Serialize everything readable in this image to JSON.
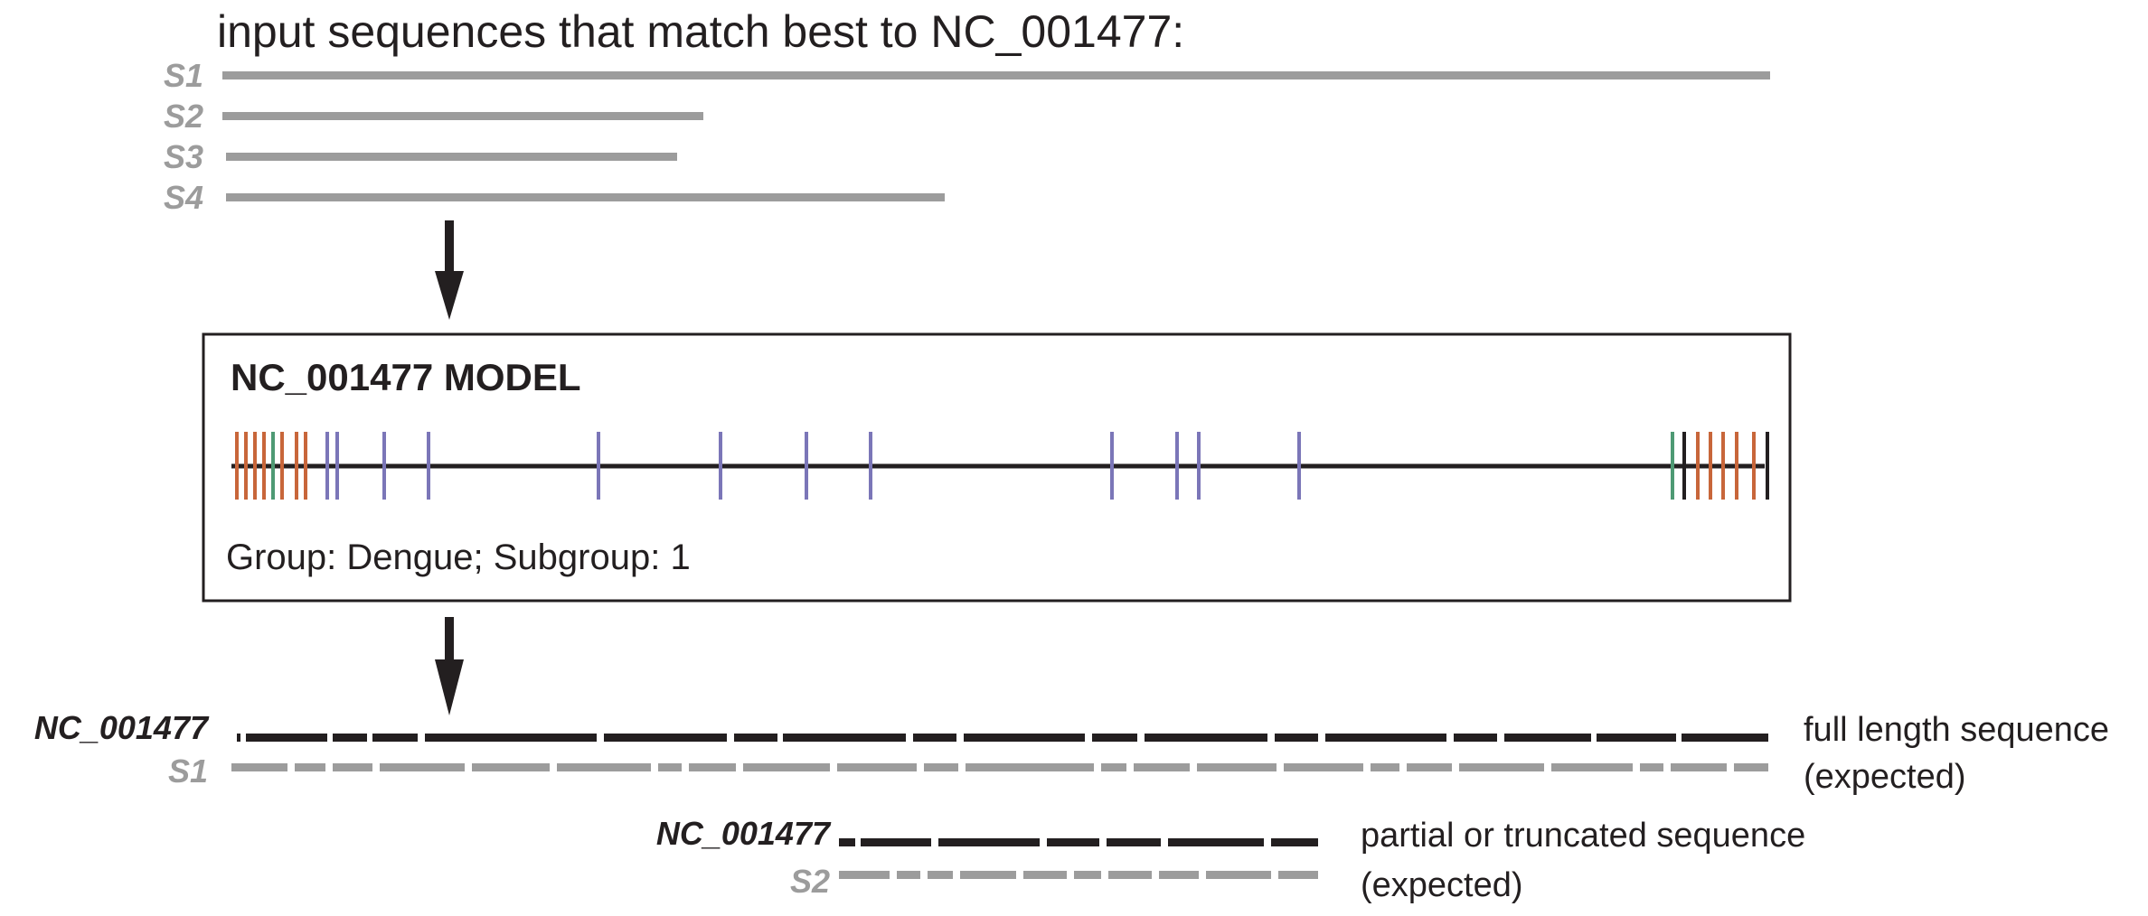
{
  "title": "input sequences that match best to NC_001477:",
  "input_sequences": [
    {
      "label": "S1",
      "length": 1.0
    },
    {
      "label": "S2",
      "length": 0.31
    },
    {
      "label": "S3",
      "length": 0.29
    },
    {
      "label": "S4",
      "length": 0.465
    }
  ],
  "model": {
    "title": "NC_001477 MODEL",
    "subtitle": "Group: Dengue; Subgroup: 1"
  },
  "full_alignment": {
    "ref_label": "NC_001477",
    "query_label": "S1",
    "description_line1": "full length sequence",
    "description_line2": "(expected)"
  },
  "partial_alignment": {
    "ref_label": "NC_001477",
    "query_label": "S2",
    "description_line1": "partial or truncated sequence",
    "description_line2": "(expected)"
  },
  "colors": {
    "gray": "#9c9c9c",
    "black": "#231f20",
    "orange": "#c8663a",
    "green": "#4e9a74",
    "purple": "#7b76b8"
  }
}
